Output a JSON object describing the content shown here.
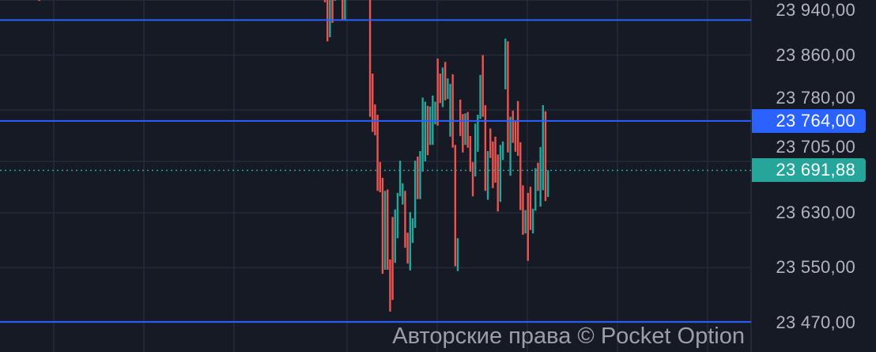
{
  "chart_data": {
    "type": "candlestick",
    "title": "",
    "xlabel": "",
    "ylabel": "",
    "ylim": [
      23460,
      23940
    ],
    "grid": true,
    "y_ticks": [
      23940,
      23860,
      23780,
      23705,
      23630,
      23550,
      23470
    ],
    "y_tick_labels": [
      "23 940,00",
      "23 860,00",
      "23 780,00",
      "23 705,00",
      "23 630,00",
      "23 550,00",
      "23 470,00"
    ],
    "colors": {
      "up": "#26a69a",
      "down": "#ef5350",
      "level_line": "#2962ff",
      "background": "#161a25",
      "grid": "#252a36",
      "axis_text": "#b2b5be"
    },
    "horizontal_levels": [
      23911,
      23764,
      23471
    ],
    "current_price": 23691.88,
    "candle_fields": [
      "index",
      "open",
      "close"
    ],
    "candles": [
      [
        -114,
        23945,
        23939
      ],
      [
        0,
        23945,
        23937
      ],
      [
        1,
        23945,
        23880
      ],
      [
        2,
        23886,
        23945
      ],
      [
        3,
        23945,
        23907
      ],
      [
        4,
        23939,
        23945
      ],
      [
        7,
        23945,
        23912
      ],
      [
        8,
        23912,
        23945
      ],
      [
        18,
        23945,
        23770
      ],
      [
        19,
        23833,
        23748
      ],
      [
        20,
        23788,
        23743
      ],
      [
        21,
        23773,
        23662
      ],
      [
        22,
        23704,
        23660
      ],
      [
        23,
        23681,
        23541
      ],
      [
        24,
        23547,
        23662
      ],
      [
        25,
        23664,
        23547
      ],
      [
        26,
        23562,
        23486
      ],
      [
        27,
        23624,
        23503
      ],
      [
        28,
        23557,
        23635
      ],
      [
        29,
        23593,
        23659
      ],
      [
        30,
        23654,
        23706
      ],
      [
        31,
        23642,
        23673
      ],
      [
        32,
        23662,
        23579
      ],
      [
        33,
        23601,
        23556
      ],
      [
        34,
        23546,
        23631
      ],
      [
        35,
        23586,
        23622
      ],
      [
        36,
        23608,
        23706
      ],
      [
        37,
        23712,
        23650
      ],
      [
        38,
        23650,
        23720
      ],
      [
        39,
        23690,
        23798
      ],
      [
        40,
        23705,
        23792
      ],
      [
        41,
        23786,
        23714
      ],
      [
        42,
        23729,
        23785
      ],
      [
        43,
        23729,
        23801
      ],
      [
        44,
        23759,
        23792
      ],
      [
        45,
        23855,
        23757
      ],
      [
        46,
        23833,
        23790
      ],
      [
        47,
        23784,
        23842
      ],
      [
        48,
        23850,
        23794
      ],
      [
        49,
        23796,
        23826
      ],
      [
        50,
        23741,
        23818
      ],
      [
        51,
        23832,
        23725
      ],
      [
        52,
        23729,
        23552
      ],
      [
        53,
        23545,
        23593
      ],
      [
        54,
        23795,
        23742
      ],
      [
        55,
        23774,
        23718
      ],
      [
        56,
        23729,
        23775
      ],
      [
        57,
        23777,
        23725
      ],
      [
        58,
        23742,
        23690
      ],
      [
        59,
        23704,
        23654
      ],
      [
        60,
        23683,
        23760
      ],
      [
        61,
        23719,
        23773
      ],
      [
        62,
        23767,
        23831
      ],
      [
        63,
        23860,
        23770
      ],
      [
        64,
        23787,
        23662
      ],
      [
        65,
        23649,
        23720
      ],
      [
        66,
        23753,
        23710
      ],
      [
        67,
        23734,
        23666
      ],
      [
        68,
        23741,
        23674
      ],
      [
        69,
        23715,
        23632
      ],
      [
        70,
        23646,
        23729
      ],
      [
        71,
        23707,
        23734
      ],
      [
        72,
        23810,
        23884
      ],
      [
        73,
        23880,
        23718
      ],
      [
        74,
        23684,
        23770
      ],
      [
        75,
        23779,
        23732
      ],
      [
        76,
        23765,
        23719
      ],
      [
        77,
        23793,
        23713
      ],
      [
        78,
        23733,
        23634
      ],
      [
        79,
        23670,
        23598
      ],
      [
        80,
        23600,
        23634
      ],
      [
        81,
        23659,
        23560
      ],
      [
        82,
        23668,
        23605
      ],
      [
        83,
        23600,
        23636
      ],
      [
        84,
        23633,
        23695
      ],
      [
        85,
        23703,
        23662
      ],
      [
        86,
        23639,
        23726
      ],
      [
        87,
        23663,
        23787
      ],
      [
        88,
        23778,
        23647
      ],
      [
        89,
        23653,
        23692
      ]
    ]
  },
  "price_scale": {
    "level_badge": "23 764,00",
    "current_badge": "23 691,88"
  },
  "watermark": "Авторские права © Pocket Option"
}
